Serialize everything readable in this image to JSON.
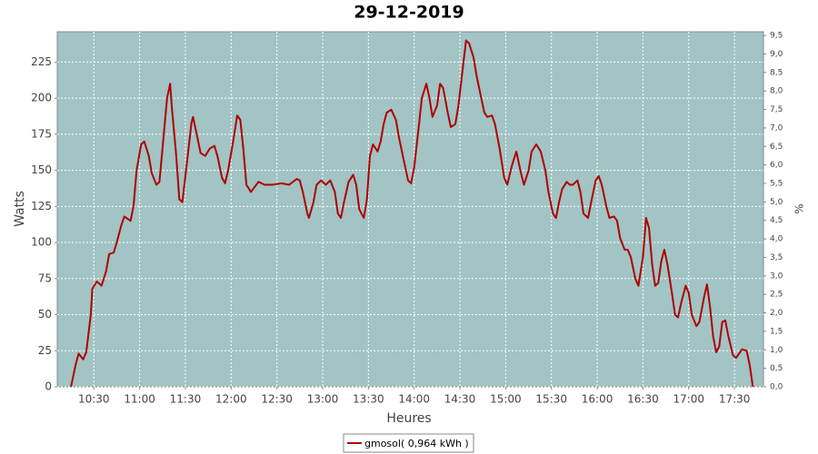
{
  "chart_data": {
    "type": "line",
    "title": "29-12-2019",
    "xlabel": "Heures",
    "ylabel": "Watts",
    "y2label": "%",
    "x": [
      "10:15",
      "10:18",
      "10:20",
      "10:23",
      "10:25",
      "10:28",
      "10:29",
      "10:32",
      "10:35",
      "10:38",
      "10:40",
      "10:43",
      "10:45",
      "10:48",
      "10:50",
      "10:54",
      "10:56",
      "10:58",
      "11:01",
      "11:03",
      "11:06",
      "11:08",
      "11:11",
      "11:13",
      "11:15",
      "11:18",
      "11:20",
      "11:21",
      "11:24",
      "11:26",
      "11:28",
      "11:31",
      "11:34",
      "11:35",
      "11:38",
      "11:40",
      "11:43",
      "11:46",
      "11:49",
      "11:51",
      "11:54",
      "11:56",
      "11:58",
      "12:01",
      "12:04",
      "12:06",
      "12:08",
      "12:10",
      "12:13",
      "12:15",
      "12:18",
      "12:22",
      "12:27",
      "12:33",
      "12:38",
      "12:43",
      "12:45",
      "12:47",
      "12:50",
      "12:51",
      "12:54",
      "12:56",
      "12:59",
      "13:02",
      "13:05",
      "13:08",
      "13:10",
      "13:12",
      "13:14",
      "13:17",
      "13:20",
      "13:22",
      "13:24",
      "13:27",
      "13:29",
      "13:31",
      "13:33",
      "13:36",
      "13:38",
      "13:40",
      "13:42",
      "13:45",
      "13:48",
      "13:50",
      "13:53",
      "13:56",
      "13:58",
      "14:00",
      "14:03",
      "14:05",
      "14:08",
      "14:10",
      "14:12",
      "14:15",
      "14:17",
      "14:19",
      "14:22",
      "14:24",
      "14:27",
      "14:29",
      "14:32",
      "14:34",
      "14:36",
      "14:39",
      "14:41",
      "14:44",
      "14:46",
      "14:48",
      "14:51",
      "14:53",
      "14:56",
      "14:59",
      "15:01",
      "15:04",
      "15:07",
      "15:10",
      "15:12",
      "15:15",
      "15:17",
      "15:20",
      "15:23",
      "15:26",
      "15:28",
      "15:31",
      "15:33",
      "15:35",
      "15:37",
      "15:40",
      "15:42",
      "15:44",
      "15:47",
      "15:49",
      "15:51",
      "15:54",
      "15:56",
      "15:59",
      "16:01",
      "16:03",
      "16:06",
      "16:08",
      "16:11",
      "16:13",
      "16:15",
      "16:18",
      "16:20",
      "16:22",
      "16:25",
      "16:27",
      "16:30",
      "16:32",
      "16:34",
      "16:36",
      "16:38",
      "16:40",
      "16:42",
      "16:44",
      "16:46",
      "16:49",
      "16:51",
      "16:53",
      "16:55",
      "16:58",
      "17:00",
      "17:02",
      "17:05",
      "17:07",
      "17:10",
      "17:12",
      "17:14",
      "17:16",
      "17:18",
      "17:20",
      "17:22",
      "17:24",
      "17:26",
      "17:29",
      "17:31",
      "17:33",
      "17:35",
      "17:38",
      "17:40",
      "17:42"
    ],
    "series": [
      {
        "name": "gmosol( 0,964 kWh )",
        "color": "#b00000",
        "values": [
          0,
          15,
          23,
          19,
          24,
          50,
          68,
          73,
          70,
          80,
          92,
          93,
          100,
          112,
          118,
          115,
          125,
          150,
          168,
          170,
          160,
          148,
          140,
          142,
          165,
          200,
          210,
          195,
          160,
          130,
          128,
          155,
          183,
          187,
          172,
          162,
          160,
          165,
          167,
          160,
          145,
          141,
          150,
          168,
          188,
          185,
          165,
          140,
          135,
          138,
          142,
          140,
          140,
          141,
          140,
          144,
          143,
          135,
          120,
          117,
          128,
          140,
          143,
          140,
          143,
          135,
          120,
          117,
          128,
          142,
          147,
          140,
          123,
          117,
          130,
          160,
          168,
          163,
          170,
          182,
          190,
          192,
          185,
          173,
          158,
          143,
          141,
          152,
          180,
          200,
          210,
          200,
          187,
          195,
          210,
          207,
          190,
          180,
          182,
          195,
          222,
          240,
          238,
          228,
          215,
          200,
          190,
          187,
          188,
          182,
          165,
          145,
          140,
          153,
          163,
          148,
          140,
          150,
          163,
          168,
          163,
          150,
          135,
          120,
          117,
          128,
          137,
          142,
          140,
          140,
          143,
          135,
          120,
          117,
          128,
          143,
          146,
          140,
          125,
          117,
          118,
          115,
          103,
          95,
          95,
          90,
          75,
          70,
          90,
          117,
          110,
          85,
          70,
          72,
          87,
          95,
          85,
          65,
          50,
          48,
          58,
          70,
          65,
          50,
          42,
          45,
          62,
          71,
          55,
          35,
          24,
          28,
          45,
          46,
          35,
          22,
          20,
          23,
          26,
          25,
          15,
          0
        ]
      }
    ],
    "xlim": [
      "10:06",
      "17:49"
    ],
    "xticks": [
      "10:30",
      "11:00",
      "11:30",
      "12:00",
      "12:30",
      "13:00",
      "13:30",
      "14:00",
      "14:30",
      "15:00",
      "15:30",
      "16:00",
      "16:30",
      "17:00",
      "17:30"
    ],
    "ylim": [
      0,
      246
    ],
    "yticks": [
      0,
      25,
      50,
      75,
      100,
      125,
      150,
      175,
      200,
      225
    ],
    "y2lim": [
      0,
      9.6
    ],
    "y2ticks": [
      {
        "value": 0,
        "label": "0,0"
      },
      {
        "value": 0.5,
        "label": "0,5"
      },
      {
        "value": 1,
        "label": "1,0"
      },
      {
        "value": 1.5,
        "label": "1,5"
      },
      {
        "value": 2,
        "label": "2,0"
      },
      {
        "value": 2.5,
        "label": "2,5"
      },
      {
        "value": 3,
        "label": "3,0"
      },
      {
        "value": 3.5,
        "label": "3,5"
      },
      {
        "value": 4,
        "label": "4,0"
      },
      {
        "value": 4.5,
        "label": "4,5"
      },
      {
        "value": 5,
        "label": "5,0"
      },
      {
        "value": 5.5,
        "label": "5,5"
      },
      {
        "value": 6,
        "label": "6,0"
      },
      {
        "value": 6.5,
        "label": "6,5"
      },
      {
        "value": 7,
        "label": "7,0"
      },
      {
        "value": 7.5,
        "label": "7,5"
      },
      {
        "value": 8,
        "label": "8,0"
      },
      {
        "value": 8.5,
        "label": "8,5"
      },
      {
        "value": 9,
        "label": "9,0"
      },
      {
        "value": 9.5,
        "label": "9,5"
      }
    ],
    "grid": true,
    "background": "#a2c4c4"
  }
}
